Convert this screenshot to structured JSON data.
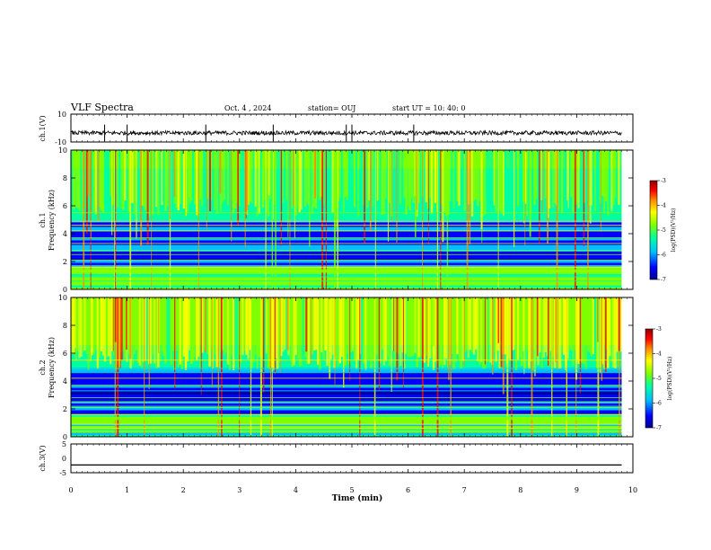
{
  "header": {
    "title": "VLF Spectra",
    "date": "Oct. 4 , 2024",
    "station": "station= OUJ",
    "start_ut": "start  UT =   10: 40: 0"
  },
  "chart_data": [
    {
      "type": "line",
      "panel": "ch1-waveform",
      "ylabel": "ch.1(V)",
      "ytick_labels": [
        "10",
        "-10"
      ],
      "ylim": [
        -10,
        10
      ],
      "x": [
        0,
        9.8
      ],
      "series": [
        {
          "values": [
            -3.5,
            -3.5
          ]
        }
      ],
      "description_of_trace": "dense noise around -3.5 V with spikes near 0.6, 1.0, 2.4, 3.6, 4.9, 5.0, 6.1 min"
    },
    {
      "type": "heatmap",
      "panel": "ch1-spectrogram",
      "ylabel_line1": "ch.1",
      "ylabel_line2": "Frequency  (kHz)",
      "ytick_labels": [
        "0",
        "2",
        "4",
        "6",
        "8",
        "10"
      ],
      "ylim": [
        0,
        10
      ],
      "xlim": [
        0,
        9.8
      ],
      "colorbar": {
        "label": "log(PSD)(V²/Hz)",
        "tick_labels": [
          "-3",
          "-4",
          "-5",
          "-6",
          "-7"
        ],
        "range": [
          -7,
          -3
        ]
      }
    },
    {
      "type": "heatmap",
      "panel": "ch2-spectrogram",
      "ylabel_line1": "ch.2",
      "ylabel_line2": "Frequency  (kHz)",
      "ytick_labels": [
        "0",
        "2",
        "4",
        "6",
        "8",
        "10"
      ],
      "ylim": [
        0,
        10
      ],
      "xlim": [
        0,
        9.8
      ],
      "colorbar": {
        "label": "log(PSD)(V²/Hz)",
        "tick_labels": [
          "-3",
          "-4",
          "-5",
          "-6",
          "-7"
        ],
        "range": [
          -7,
          -3
        ]
      }
    },
    {
      "type": "line",
      "panel": "ch3-waveform",
      "ylabel": "ch.3(V)",
      "ytick_labels": [
        "5",
        "0",
        "-5"
      ],
      "ylim": [
        -5,
        5
      ],
      "x": [
        0,
        9.8
      ],
      "series": [
        {
          "values": [
            -2.3,
            -2.3
          ]
        }
      ]
    }
  ],
  "xaxis": {
    "label": "Time  (min)",
    "tick_labels": [
      "0",
      "1",
      "2",
      "3",
      "4",
      "5",
      "6",
      "7",
      "8",
      "9",
      "10"
    ],
    "xlim": [
      0,
      10
    ]
  },
  "colors": {
    "axes": "#000000",
    "trace": "#000000",
    "cmap": [
      "#00008b",
      "#0000ff",
      "#00bfff",
      "#00ffa0",
      "#7fff00",
      "#ffff00",
      "#ff8c00",
      "#ff0000",
      "#8b0000"
    ]
  }
}
